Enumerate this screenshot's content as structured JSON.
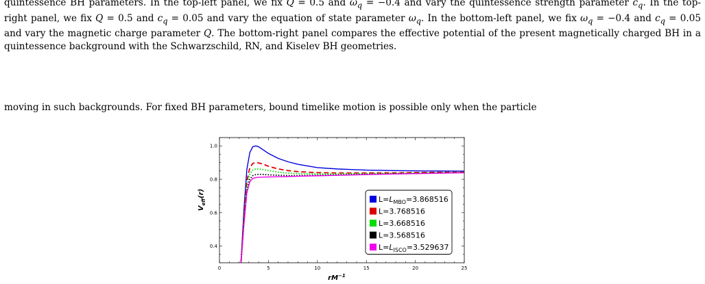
{
  "caption": {
    "part1": "quintessence BH parameters. In the top-left panel, we fix ",
    "q_sym": "Q",
    "part2": " = 0.5 and ",
    "w_sym": "ω",
    "w_sub": "q",
    "part3": " = −0.4 and vary the quintessence strength parameter ",
    "c_sym": "c",
    "c_sub": "q",
    "part4": ". In the top-right panel, we fix ",
    "part5": " = 0.5 and ",
    "part6": " = 0.05 and vary the equation of state parameter ",
    "part7": ". In the bottom-left panel, we fix ",
    "part8": " = −0.4 and ",
    "part9": " = 0.05 and vary the magnetic charge parameter ",
    "part10": ". The bottom-right panel compares the effective potential of the present magnetically charged BH in a quintessence background with the Schwarzschild, RN, and Kiselev BH geometries."
  },
  "body_text": "moving in such backgrounds. For fixed BH parameters, bound timelike motion is possible only when the particle",
  "chart_data": {
    "type": "line",
    "title": "",
    "xlabel": "rM",
    "xlabel_sup": "−1",
    "ylabel": "V",
    "ylabel_sub": "eff",
    "ylabel_suffix": "(r)",
    "xlim": [
      0,
      25
    ],
    "ylim": [
      0.3,
      1.05
    ],
    "x_ticks": [
      0,
      5,
      10,
      15,
      20,
      25
    ],
    "x_tick_labels": [
      "0",
      "5",
      "10",
      "15",
      "20",
      "25"
    ],
    "y_ticks": [
      0.4,
      0.6,
      0.8,
      1.0
    ],
    "y_tick_labels": [
      "0.4",
      "0.6",
      "0.8",
      "1.0"
    ],
    "legend_position": "right",
    "series": [
      {
        "legend_pre": "L=",
        "legend_sym": "L",
        "legend_sub": "MBO",
        "legend_val": "=3.868516",
        "color": "#0000dd",
        "style": "solid",
        "x": [
          2.2,
          2.5,
          2.8,
          3.1,
          3.4,
          3.7,
          4.0,
          4.5,
          5.0,
          6.0,
          7.0,
          8.0,
          10.0,
          12.0,
          15.0,
          18.0,
          21.0,
          25.0
        ],
        "y": [
          0.3,
          0.62,
          0.86,
          0.96,
          0.995,
          1.0,
          0.995,
          0.975,
          0.955,
          0.925,
          0.905,
          0.89,
          0.87,
          0.862,
          0.855,
          0.852,
          0.85,
          0.849
        ]
      },
      {
        "legend_pre": "L=3.768516",
        "legend_sym": "",
        "legend_sub": "",
        "legend_val": "",
        "color": "#dd0000",
        "style": "dashed",
        "x": [
          2.2,
          2.5,
          2.8,
          3.1,
          3.4,
          3.7,
          4.0,
          4.5,
          5.0,
          6.0,
          7.0,
          8.0,
          10.0,
          12.0,
          15.0,
          18.0,
          21.0,
          25.0
        ],
        "y": [
          0.3,
          0.58,
          0.79,
          0.87,
          0.895,
          0.9,
          0.898,
          0.89,
          0.878,
          0.862,
          0.852,
          0.846,
          0.84,
          0.838,
          0.838,
          0.839,
          0.841,
          0.843
        ]
      },
      {
        "legend_pre": "L=3.668516",
        "legend_sym": "",
        "legend_sub": "",
        "legend_val": "",
        "color": "#00dd00",
        "style": "dotted",
        "x": [
          2.2,
          2.5,
          2.8,
          3.1,
          3.4,
          3.7,
          4.0,
          4.5,
          5.0,
          6.0,
          7.0,
          8.0,
          10.0,
          12.0,
          15.0,
          18.0,
          21.0,
          25.0
        ],
        "y": [
          0.3,
          0.56,
          0.76,
          0.83,
          0.855,
          0.862,
          0.862,
          0.858,
          0.852,
          0.843,
          0.837,
          0.834,
          0.832,
          0.832,
          0.834,
          0.836,
          0.838,
          0.841
        ]
      },
      {
        "legend_pre": "L=3.568516",
        "legend_sym": "",
        "legend_sub": "",
        "legend_val": "",
        "color": "#000000",
        "style": "dotted",
        "x": [
          2.2,
          2.5,
          2.8,
          3.1,
          3.4,
          3.7,
          4.0,
          4.5,
          5.0,
          6.0,
          7.0,
          8.0,
          10.0,
          12.0,
          15.0,
          18.0,
          21.0,
          25.0
        ],
        "y": [
          0.3,
          0.54,
          0.73,
          0.8,
          0.822,
          0.828,
          0.83,
          0.829,
          0.827,
          0.824,
          0.822,
          0.822,
          0.824,
          0.826,
          0.83,
          0.833,
          0.836,
          0.84
        ]
      },
      {
        "legend_pre": "L=",
        "legend_sym": "L",
        "legend_sub": "ISCO",
        "legend_val": "=3.529637",
        "color": "#ee00ee",
        "style": "solid",
        "x": [
          2.2,
          2.5,
          2.8,
          3.1,
          3.4,
          3.7,
          4.0,
          4.5,
          5.0,
          6.0,
          7.0,
          8.0,
          10.0,
          12.0,
          15.0,
          18.0,
          21.0,
          25.0
        ],
        "y": [
          0.3,
          0.53,
          0.72,
          0.785,
          0.805,
          0.81,
          0.812,
          0.813,
          0.814,
          0.815,
          0.816,
          0.818,
          0.821,
          0.824,
          0.828,
          0.832,
          0.835,
          0.839
        ]
      }
    ]
  }
}
